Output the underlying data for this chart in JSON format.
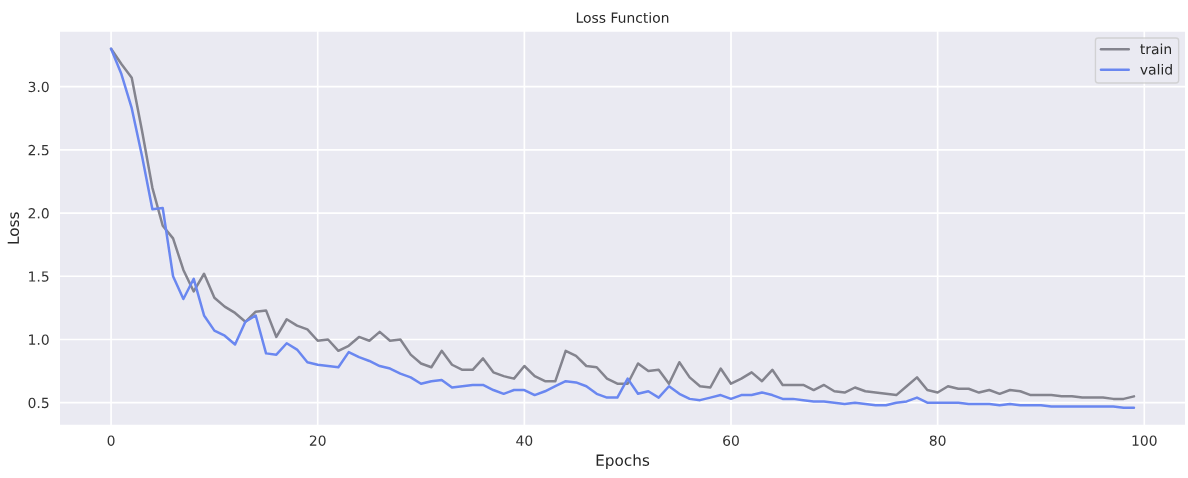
{
  "chart_data": {
    "type": "line",
    "title": "Loss Function",
    "xlabel": "Epochs",
    "ylabel": "Loss",
    "x": [
      0,
      1,
      2,
      3,
      4,
      5,
      6,
      7,
      8,
      9,
      10,
      11,
      12,
      13,
      14,
      15,
      16,
      17,
      18,
      19,
      20,
      21,
      22,
      23,
      24,
      25,
      26,
      27,
      28,
      29,
      30,
      31,
      32,
      33,
      34,
      35,
      36,
      37,
      38,
      39,
      40,
      41,
      42,
      43,
      44,
      45,
      46,
      47,
      48,
      49,
      50,
      51,
      52,
      53,
      54,
      55,
      56,
      57,
      58,
      59,
      60,
      61,
      62,
      63,
      64,
      65,
      66,
      67,
      68,
      69,
      70,
      71,
      72,
      73,
      74,
      75,
      76,
      77,
      78,
      79,
      80,
      81,
      82,
      83,
      84,
      85,
      86,
      87,
      88,
      89,
      90,
      91,
      92,
      93,
      94,
      95,
      96,
      97,
      98,
      99
    ],
    "series": [
      {
        "name": "train",
        "color": "#84848e",
        "values": [
          3.3,
          3.18,
          3.07,
          2.65,
          2.2,
          1.9,
          1.8,
          1.55,
          1.38,
          1.52,
          1.33,
          1.26,
          1.21,
          1.14,
          1.22,
          1.23,
          1.02,
          1.16,
          1.11,
          1.08,
          0.99,
          1.0,
          0.91,
          0.95,
          1.02,
          0.99,
          1.06,
          0.99,
          1.0,
          0.88,
          0.81,
          0.78,
          0.91,
          0.8,
          0.76,
          0.76,
          0.85,
          0.74,
          0.71,
          0.69,
          0.79,
          0.71,
          0.67,
          0.67,
          0.91,
          0.87,
          0.79,
          0.78,
          0.69,
          0.65,
          0.65,
          0.81,
          0.75,
          0.76,
          0.65,
          0.82,
          0.7,
          0.63,
          0.62,
          0.77,
          0.65,
          0.69,
          0.74,
          0.67,
          0.76,
          0.64,
          0.64,
          0.64,
          0.6,
          0.64,
          0.59,
          0.58,
          0.62,
          0.59,
          0.58,
          0.57,
          0.56,
          0.63,
          0.7,
          0.6,
          0.58,
          0.63,
          0.61,
          0.61,
          0.58,
          0.6,
          0.57,
          0.6,
          0.59,
          0.56,
          0.56,
          0.56,
          0.55,
          0.55,
          0.54,
          0.54,
          0.54,
          0.53,
          0.53,
          0.55
        ]
      },
      {
        "name": "valid",
        "color": "#6a87f0",
        "values": [
          3.3,
          3.1,
          2.83,
          2.45,
          2.03,
          2.04,
          1.5,
          1.32,
          1.48,
          1.19,
          1.07,
          1.03,
          0.96,
          1.14,
          1.19,
          0.89,
          0.88,
          0.97,
          0.92,
          0.82,
          0.8,
          0.79,
          0.78,
          0.9,
          0.86,
          0.83,
          0.79,
          0.77,
          0.73,
          0.7,
          0.65,
          0.67,
          0.68,
          0.62,
          0.63,
          0.64,
          0.64,
          0.6,
          0.57,
          0.6,
          0.6,
          0.56,
          0.59,
          0.63,
          0.67,
          0.66,
          0.63,
          0.57,
          0.54,
          0.54,
          0.69,
          0.57,
          0.59,
          0.54,
          0.63,
          0.57,
          0.53,
          0.52,
          0.54,
          0.56,
          0.53,
          0.56,
          0.56,
          0.58,
          0.56,
          0.53,
          0.53,
          0.52,
          0.51,
          0.51,
          0.5,
          0.49,
          0.5,
          0.49,
          0.48,
          0.48,
          0.5,
          0.51,
          0.54,
          0.5,
          0.5,
          0.5,
          0.5,
          0.49,
          0.49,
          0.49,
          0.48,
          0.49,
          0.48,
          0.48,
          0.48,
          0.47,
          0.47,
          0.47,
          0.47,
          0.47,
          0.47,
          0.47,
          0.46,
          0.46
        ]
      }
    ],
    "xlim": [
      -5,
      104
    ],
    "ylim": [
      0.32,
      3.44
    ],
    "xticks": [
      0,
      20,
      40,
      60,
      80,
      100
    ],
    "yticks": [
      {
        "value": 0.5,
        "label": "0.5"
      },
      {
        "value": 1.0,
        "label": "1.0"
      },
      {
        "value": 1.5,
        "label": "1.5"
      },
      {
        "value": 2.0,
        "label": "2.0"
      },
      {
        "value": 2.5,
        "label": "2.5"
      },
      {
        "value": 3.0,
        "label": "3.0"
      }
    ],
    "grid": true,
    "legend": "top right",
    "line_style": "solid",
    "marker": "none"
  }
}
